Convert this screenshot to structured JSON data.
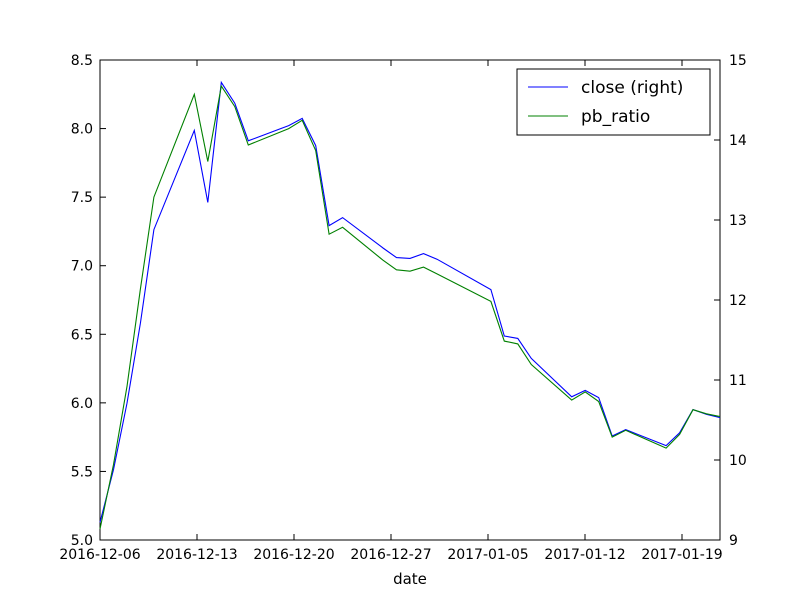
{
  "chart_data": {
    "type": "line",
    "xlabel": "date",
    "x_tick_labels": [
      "2016-12-06",
      "2016-12-13",
      "2016-12-20",
      "2016-12-27",
      "2017-01-05",
      "2017-01-12",
      "2017-01-19"
    ],
    "x": [
      "2016-12-05",
      "2016-12-06",
      "2016-12-07",
      "2016-12-08",
      "2016-12-09",
      "2016-12-12",
      "2016-12-13",
      "2016-12-14",
      "2016-12-15",
      "2016-12-16",
      "2016-12-19",
      "2016-12-20",
      "2016-12-21",
      "2016-12-22",
      "2016-12-23",
      "2016-12-26",
      "2016-12-27",
      "2016-12-28",
      "2016-12-29",
      "2016-12-30",
      "2017-01-03",
      "2017-01-04",
      "2017-01-05",
      "2017-01-06",
      "2017-01-09",
      "2017-01-10",
      "2017-01-11",
      "2017-01-12",
      "2017-01-13",
      "2017-01-16",
      "2017-01-17",
      "2017-01-18",
      "2017-01-19",
      "2017-01-20"
    ],
    "left_axis": {
      "ylim": [
        5.0,
        8.5
      ],
      "ticks": [
        "5.0",
        "5.5",
        "6.0",
        "6.5",
        "7.0",
        "7.5",
        "8.0",
        "8.5"
      ]
    },
    "right_axis": {
      "ylim": [
        9,
        15
      ],
      "ticks": [
        "9",
        "10",
        "11",
        "12",
        "13",
        "14",
        "15"
      ]
    },
    "legend_position": "top-right",
    "series": [
      {
        "name": "close (right)",
        "axis": "right",
        "color": "#0000ff",
        "values": [
          9.22,
          9.88,
          10.71,
          11.71,
          12.88,
          14.12,
          13.22,
          14.72,
          14.46,
          13.99,
          14.18,
          14.27,
          13.93,
          12.93,
          13.03,
          12.65,
          12.53,
          12.52,
          12.58,
          12.51,
          12.13,
          11.55,
          11.52,
          11.27,
          10.79,
          10.87,
          10.78,
          10.3,
          10.38,
          10.18,
          10.34,
          10.63,
          10.57,
          10.53
        ]
      },
      {
        "name": "pb_ratio",
        "axis": "left",
        "color": "#008000",
        "values": [
          5.08,
          5.55,
          6.12,
          6.83,
          7.5,
          8.25,
          7.76,
          8.31,
          8.16,
          7.88,
          8.0,
          8.06,
          7.84,
          7.23,
          7.28,
          7.04,
          6.97,
          6.96,
          6.99,
          6.94,
          6.74,
          6.45,
          6.43,
          6.28,
          6.02,
          6.08,
          6.01,
          5.75,
          5.8,
          5.67,
          5.77,
          5.95,
          5.92,
          5.9
        ]
      }
    ]
  }
}
